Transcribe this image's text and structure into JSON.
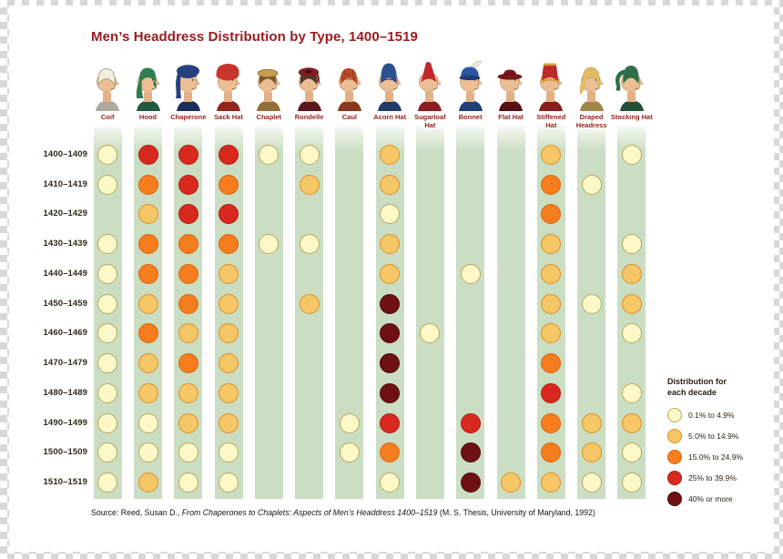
{
  "title": "Men’s Headdress Distribution by Type, 1400–1519",
  "legend": {
    "title": "Distribution for each decade"
  },
  "source": {
    "prefix": "Source: Reed, Susan D., ",
    "italic": "From Chaperones to Chaplets: Aspects of Men’s Headdress 1400–1519",
    "suffix": " (M. S. Thesis, University of Maryland, 1992)"
  },
  "chart_data": {
    "type": "heatmap",
    "title": "Men’s Headdress Distribution by Type, 1400–1519",
    "unit": "percent share of headdress type per decade",
    "legend_position": "right",
    "rows": [
      "1400–1409",
      "1410–1419",
      "1420–1429",
      "1430–1439",
      "1440–1449",
      "1450–1459",
      "1460–1469",
      "1470–1479",
      "1480–1489",
      "1490–1499",
      "1500–1509",
      "1510–1519"
    ],
    "columns": [
      {
        "key": "coif",
        "label": "Coif",
        "hat_color": "#F2EEDC"
      },
      {
        "key": "hood",
        "label": "Hood",
        "hat_color": "#2E7D53"
      },
      {
        "key": "chaperone",
        "label": "Chaperone",
        "hat_color": "#27407F"
      },
      {
        "key": "sack-hat",
        "label": "Sack Hat",
        "hat_color": "#C8352A"
      },
      {
        "key": "chaplet",
        "label": "Chaplet",
        "hat_color": "#C99C4E"
      },
      {
        "key": "rondelle",
        "label": "Rondelle",
        "hat_color": "#7E1E24"
      },
      {
        "key": "caul",
        "label": "Caul",
        "hat_color": "#BF4E2C"
      },
      {
        "key": "acorn-hat",
        "label": "Acorn Hat",
        "hat_color": "#2C4F8E"
      },
      {
        "key": "sugarloaf-hat",
        "label": "Sugarloaf Hat",
        "hat_color": "#C1272D"
      },
      {
        "key": "bonnet",
        "label": "Bonnet",
        "hat_color": "#2B57A5"
      },
      {
        "key": "flat-hat",
        "label": "Flat Hat",
        "hat_color": "#7A151B"
      },
      {
        "key": "stiffened-hat",
        "label": "Stiffened Hat",
        "hat_color": "#BB2B28"
      },
      {
        "key": "draped-headress",
        "label": "Draped Headress",
        "hat_color": "#DFBC62"
      },
      {
        "key": "stocking-hat",
        "label": "Stocking Hat",
        "hat_color": "#2F6E49"
      }
    ],
    "levels": [
      {
        "value": "none",
        "fill": null,
        "stroke": null
      },
      {
        "value": "0.1% to 4.9%",
        "fill": "#FCF8C8",
        "stroke": "#B9A75D"
      },
      {
        "value": "5.0% to 14.9%",
        "fill": "#F5C766",
        "stroke": "#DD8E26"
      },
      {
        "value": "15.0% to 24.9%",
        "fill": "#F57D1D",
        "stroke": "#DA660E"
      },
      {
        "value": "25% to 39.9%",
        "fill": "#D9291E",
        "stroke": "#AD1B15"
      },
      {
        "value": "40% or more",
        "fill": "#6E1014",
        "stroke": "#4E0A0C"
      }
    ],
    "matrix_note": "matrix values are indexes into levels[]; rows = decades, columns = headdress types",
    "matrix": [
      [
        1,
        4,
        4,
        4,
        1,
        1,
        0,
        2,
        0,
        0,
        0,
        2,
        0,
        1
      ],
      [
        1,
        3,
        4,
        3,
        0,
        2,
        0,
        2,
        0,
        0,
        0,
        3,
        1,
        0
      ],
      [
        0,
        2,
        4,
        4,
        0,
        0,
        0,
        1,
        0,
        0,
        0,
        3,
        0,
        0
      ],
      [
        1,
        3,
        3,
        3,
        1,
        1,
        0,
        2,
        0,
        0,
        0,
        2,
        0,
        1
      ],
      [
        1,
        3,
        3,
        2,
        0,
        0,
        0,
        2,
        0,
        1,
        0,
        2,
        0,
        2
      ],
      [
        1,
        2,
        3,
        2,
        0,
        2,
        0,
        5,
        0,
        0,
        0,
        2,
        1,
        2
      ],
      [
        1,
        3,
        2,
        2,
        0,
        0,
        0,
        5,
        1,
        0,
        0,
        2,
        0,
        1
      ],
      [
        1,
        2,
        3,
        2,
        0,
        0,
        0,
        5,
        0,
        0,
        0,
        3,
        0,
        0
      ],
      [
        1,
        2,
        2,
        2,
        0,
        0,
        0,
        5,
        0,
        0,
        0,
        4,
        0,
        1
      ],
      [
        1,
        1,
        2,
        2,
        0,
        0,
        1,
        4,
        0,
        4,
        0,
        3,
        2,
        2
      ],
      [
        1,
        1,
        1,
        1,
        0,
        0,
        1,
        3,
        0,
        5,
        0,
        3,
        2,
        1
      ],
      [
        1,
        2,
        1,
        1,
        0,
        0,
        0,
        1,
        0,
        5,
        2,
        2,
        1,
        1
      ]
    ]
  }
}
